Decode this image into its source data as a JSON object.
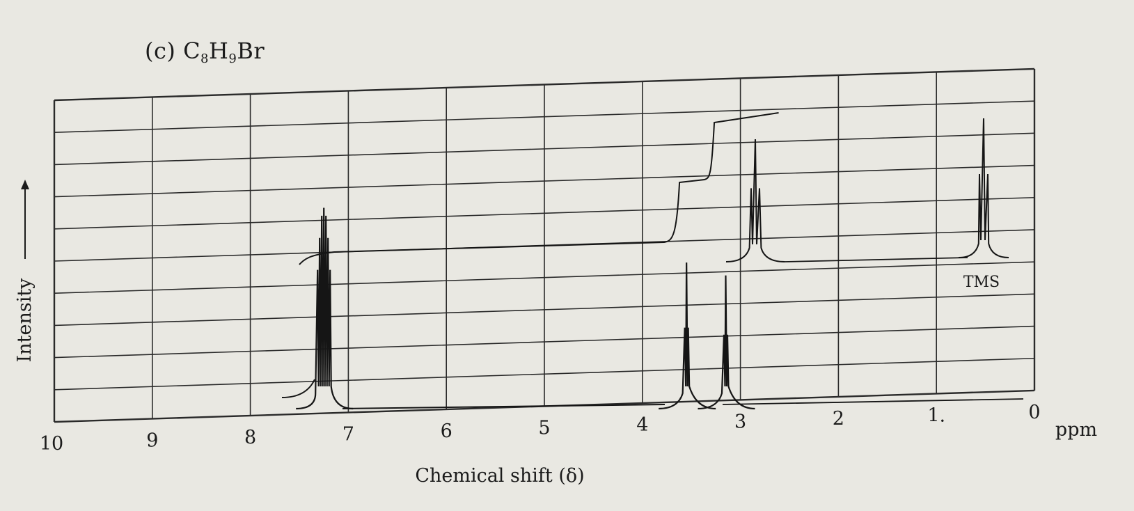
{
  "title": {
    "prefix": "(c) C",
    "sub1": "8",
    "mid": "H",
    "sub2": "9",
    "suffix": "Br"
  },
  "chart_data": {
    "type": "line",
    "title": "(c) C8H9Br",
    "xlabel": "Chemical shift (δ)",
    "ylabel": "Intensity",
    "x_unit": "ppm",
    "xlim": [
      10,
      0
    ],
    "x_reversed": true,
    "x_ticks": [
      "10",
      "9",
      "8",
      "7",
      "6",
      "5",
      "4",
      "3",
      "2",
      "1.",
      "0"
    ],
    "grid": true,
    "grid_rows": 10,
    "grid_cols": 10,
    "peaks": [
      {
        "shift": 7.25,
        "relative_height": 0.62,
        "type": "multiplet"
      },
      {
        "shift": 3.55,
        "relative_height": 0.45,
        "type": "triplet"
      },
      {
        "shift": 3.15,
        "relative_height": 0.41,
        "type": "triplet"
      },
      {
        "shift": 0.0,
        "relative_height": 0.23,
        "type": "reference",
        "label": "TMS"
      }
    ],
    "integration_steps": [
      {
        "region": [
          7.6,
          7.0
        ],
        "relative_rise": 0.5
      },
      {
        "region": [
          3.7,
          3.4
        ],
        "relative_rise": 0.2
      },
      {
        "region": [
          3.3,
          3.0
        ],
        "relative_rise": 0.2
      }
    ],
    "annotations": [
      "TMS"
    ]
  }
}
